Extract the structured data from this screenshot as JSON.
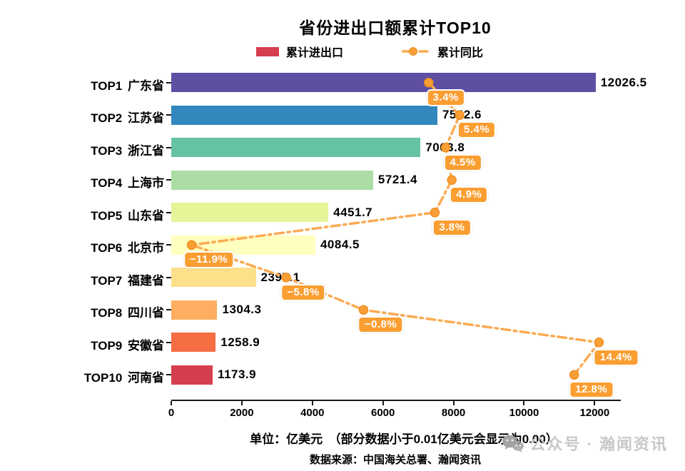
{
  "title": "省份进出口额累计TOP10",
  "chart_data": {
    "type": "bar",
    "orientation": "horizontal",
    "title": "省份进出口额累计TOP10",
    "categories": [
      "TOP1 广东省",
      "TOP2 江苏省",
      "TOP3 浙江省",
      "TOP4 上海市",
      "TOP5 山东省",
      "TOP6 北京市",
      "TOP7 福建省",
      "TOP8 四川省",
      "TOP9 安徽省",
      "TOP10 河南省"
    ],
    "series": [
      {
        "name": "累计进出口",
        "type": "bar",
        "unit": "亿美元",
        "values": [
          12026.5,
          7542.6,
          7063.8,
          5721.4,
          4451.7,
          4084.5,
          2397.1,
          1304.3,
          1258.9,
          1173.9
        ],
        "value_labels": [
          "12026.5",
          "7542.6",
          "7063.8",
          "5721.4",
          "4451.7",
          "4084.5",
          "2397.1",
          "1304.3",
          "1258.9",
          "1173.9"
        ],
        "bar_colors": [
          "#5e4fa2",
          "#3288bd",
          "#66c2a5",
          "#abdda4",
          "#e6f598",
          "#ffffbf",
          "#fee08b",
          "#fdae61",
          "#f46d43",
          "#d53e4f"
        ]
      },
      {
        "name": "累计同比",
        "type": "line",
        "unit": "%",
        "values": [
          3.4,
          5.4,
          4.5,
          4.9,
          3.8,
          -11.9,
          -5.8,
          -0.8,
          14.4,
          12.8
        ],
        "point_labels": [
          "3.4%",
          "5.4%",
          "4.5%",
          "4.9%",
          "3.8%",
          "−11.9%",
          "−5.8%",
          "−0.8%",
          "14.4%",
          "12.8%"
        ]
      }
    ],
    "x_ticks": [
      0,
      2000,
      4000,
      6000,
      8000,
      10000,
      12000
    ],
    "xlim": [
      0,
      12700
    ],
    "grid": false,
    "legend_position": "top"
  },
  "footer": {
    "unit_note": "单位：亿美元　（部分数据小于0.01亿美元会显示为0.00）",
    "source_note": "数据来源：中国海关总署、瀚闻资讯"
  },
  "watermark": {
    "text": "公众号 · 瀚闻资讯",
    "icon": "wechat-icon"
  },
  "colors": {
    "line": "#fbab55",
    "marker_fill": "#f99f35",
    "marker_edge": "#ee8f23",
    "label_box": "#fa9e32",
    "label_text": "#ffffff",
    "axis": "#1a1a1a",
    "text": "#000000",
    "watermark_text": "#c6c6c6",
    "watermark_icon": "#a3a3a3"
  }
}
